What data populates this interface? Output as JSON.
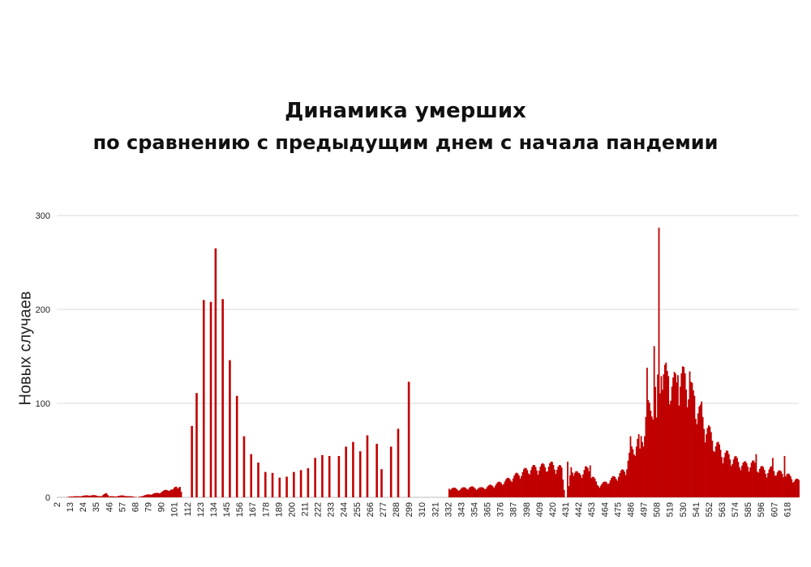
{
  "title": {
    "line1": "Динамика умерших",
    "line2": "по сравнению с предыдущим днем с начала пандемии"
  },
  "chart_data": {
    "type": "bar",
    "title": "Динамика умерших по сравнению с предыдущим днем с начала пандемии",
    "xlabel": "",
    "ylabel": "Новых случаев",
    "ylim": [
      0,
      300
    ],
    "y_ticks": [
      0,
      100,
      200,
      300
    ],
    "x_tick_labels": [
      2,
      13,
      24,
      35,
      46,
      57,
      68,
      79,
      90,
      101,
      112,
      123,
      134,
      145,
      156,
      167,
      178,
      189,
      200,
      211,
      222,
      233,
      244,
      255,
      266,
      277,
      288,
      299,
      310,
      321,
      332,
      343,
      354,
      365,
      376,
      387,
      398,
      409,
      420,
      431,
      442,
      453,
      464,
      475,
      486,
      497,
      508,
      519,
      530,
      541,
      552,
      563,
      574,
      585,
      596,
      607,
      618
    ],
    "x_start": 2,
    "x_end": 628,
    "grid": true,
    "bar_color": "#c00000",
    "anchors": [
      [
        2,
        0
      ],
      [
        10,
        0
      ],
      [
        14,
        1
      ],
      [
        20,
        1
      ],
      [
        28,
        2
      ],
      [
        34,
        2
      ],
      [
        40,
        1
      ],
      [
        44,
        5
      ],
      [
        46,
        1
      ],
      [
        52,
        1
      ],
      [
        58,
        2
      ],
      [
        62,
        1
      ],
      [
        66,
        1
      ],
      [
        70,
        0
      ],
      [
        76,
        2
      ],
      [
        80,
        3
      ],
      [
        86,
        4
      ],
      [
        92,
        6
      ],
      [
        96,
        8
      ],
      [
        100,
        7
      ],
      [
        103,
        12
      ],
      [
        106,
        10
      ],
      [
        108,
        0
      ],
      [
        114,
        0
      ],
      [
        332,
        10
      ],
      [
        340,
        8
      ],
      [
        350,
        10
      ],
      [
        360,
        9
      ],
      [
        370,
        12
      ],
      [
        380,
        16
      ],
      [
        390,
        22
      ],
      [
        400,
        28
      ],
      [
        410,
        30
      ],
      [
        420,
        32
      ],
      [
        428,
        28
      ],
      [
        431,
        0
      ],
      [
        433,
        0
      ],
      [
        436,
        30
      ],
      [
        442,
        22
      ],
      [
        448,
        28
      ],
      [
        452,
        26
      ],
      [
        458,
        12
      ],
      [
        464,
        14
      ],
      [
        470,
        18
      ],
      [
        476,
        22
      ],
      [
        482,
        28
      ],
      [
        486,
        45
      ],
      [
        492,
        55
      ],
      [
        496,
        60
      ],
      [
        500,
        85
      ],
      [
        504,
        90
      ],
      [
        510,
        115
      ],
      [
        516,
        120
      ],
      [
        522,
        110
      ],
      [
        528,
        118
      ],
      [
        534,
        115
      ],
      [
        540,
        95
      ],
      [
        546,
        80
      ],
      [
        552,
        65
      ],
      [
        558,
        52
      ],
      [
        564,
        44
      ],
      [
        570,
        40
      ],
      [
        576,
        36
      ],
      [
        582,
        32
      ],
      [
        588,
        34
      ],
      [
        594,
        30
      ],
      [
        600,
        26
      ],
      [
        606,
        28
      ],
      [
        612,
        24
      ],
      [
        618,
        22
      ],
      [
        624,
        18
      ],
      [
        628,
        16
      ]
    ],
    "spikes": [
      [
        116,
        76
      ],
      [
        120,
        111
      ],
      [
        126,
        210
      ],
      [
        132,
        208
      ],
      [
        136,
        265
      ],
      [
        142,
        211
      ],
      [
        148,
        146
      ],
      [
        154,
        108
      ],
      [
        160,
        65
      ],
      [
        166,
        46
      ],
      [
        172,
        37
      ],
      [
        178,
        27
      ],
      [
        184,
        26
      ],
      [
        190,
        21
      ],
      [
        196,
        22
      ],
      [
        202,
        27
      ],
      [
        208,
        29
      ],
      [
        214,
        31
      ],
      [
        220,
        42
      ],
      [
        226,
        45
      ],
      [
        232,
        44
      ],
      [
        240,
        44
      ],
      [
        246,
        54
      ],
      [
        252,
        59
      ],
      [
        258,
        49
      ],
      [
        264,
        66
      ],
      [
        272,
        57
      ],
      [
        276,
        30
      ],
      [
        284,
        54
      ],
      [
        290,
        73
      ],
      [
        299,
        123
      ],
      [
        433,
        38
      ],
      [
        448,
        33
      ],
      [
        452,
        34
      ],
      [
        486,
        65
      ],
      [
        494,
        52
      ],
      [
        498,
        65
      ],
      [
        500,
        138
      ],
      [
        504,
        86
      ],
      [
        506,
        161
      ],
      [
        508,
        85
      ],
      [
        510,
        287
      ],
      [
        512,
        129
      ],
      [
        518,
        129
      ],
      [
        526,
        130
      ],
      [
        532,
        132
      ],
      [
        536,
        134
      ],
      [
        540,
        108
      ],
      [
        546,
        102
      ],
      [
        592,
        46
      ],
      [
        606,
        42
      ],
      [
        616,
        44
      ]
    ]
  }
}
